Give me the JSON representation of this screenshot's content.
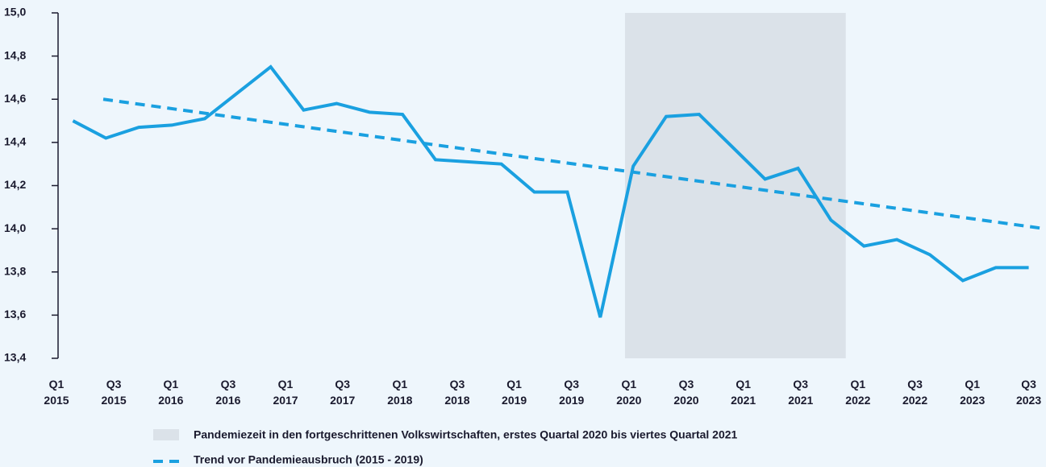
{
  "chart_data": {
    "type": "line",
    "values": [
      14.5,
      14.42,
      14.47,
      14.48,
      14.51,
      14.63,
      14.75,
      14.55,
      14.58,
      14.54,
      14.53,
      14.32,
      14.31,
      14.3,
      14.17,
      14.17,
      13.59,
      14.29,
      14.52,
      14.53,
      14.38,
      14.23,
      14.28,
      14.04,
      13.92,
      13.95,
      13.88,
      13.76,
      13.82,
      13.82
    ],
    "color": "#1aa0e0",
    "trend": {
      "name": "Trend vor Pandemieausbruch (2015 - 2019)",
      "x": [
        0.92,
        29.5
      ],
      "values": [
        14.6,
        14.0
      ],
      "color": "#1aa0e0",
      "dashed": true
    },
    "shade": {
      "name": "Pandemiezeit in den fortgeschrittenen Volkswirtschaften, erstes Quartal 2020 bis viertes Quartal 2021",
      "xlim": [
        16.75,
        23.45
      ],
      "color": "#dbe2e9"
    },
    "xlim": [
      -0.5,
      29.5
    ],
    "xticks": [
      {
        "value": -0.5,
        "label": "Q1 2015"
      },
      {
        "value": 1.24,
        "label": "Q3 2015"
      },
      {
        "value": 2.97,
        "label": "Q1 2016"
      },
      {
        "value": 4.71,
        "label": "Q3 2016"
      },
      {
        "value": 6.45,
        "label": "Q1 2017"
      },
      {
        "value": 8.18,
        "label": "Q3 2017"
      },
      {
        "value": 9.92,
        "label": "Q1 2018"
      },
      {
        "value": 11.66,
        "label": "Q3 2018"
      },
      {
        "value": 13.39,
        "label": "Q1 2019"
      },
      {
        "value": 15.13,
        "label": "Q3 2019"
      },
      {
        "value": 16.87,
        "label": "Q1 2020"
      },
      {
        "value": 18.61,
        "label": "Q3 2020"
      },
      {
        "value": 20.34,
        "label": "Q1 2021"
      },
      {
        "value": 22.08,
        "label": "Q3 2021"
      },
      {
        "value": 23.82,
        "label": "Q1 2022"
      },
      {
        "value": 25.55,
        "label": "Q3 2022"
      },
      {
        "value": 27.29,
        "label": "Q1 2023"
      },
      {
        "value": 29.0,
        "label": "Q3 2023"
      }
    ],
    "ylim": [
      13.4,
      15.0
    ],
    "yticks": [
      {
        "value": 13.4,
        "label": "13,4"
      },
      {
        "value": 13.6,
        "label": "13,6"
      },
      {
        "value": 13.8,
        "label": "13,8"
      },
      {
        "value": 14.0,
        "label": "14,0"
      },
      {
        "value": 14.2,
        "label": "14,2"
      },
      {
        "value": 14.4,
        "label": "14,4"
      },
      {
        "value": 14.6,
        "label": "14,6"
      },
      {
        "value": 14.8,
        "label": "14,8"
      },
      {
        "value": 15.0,
        "label": "15,0"
      }
    ]
  }
}
